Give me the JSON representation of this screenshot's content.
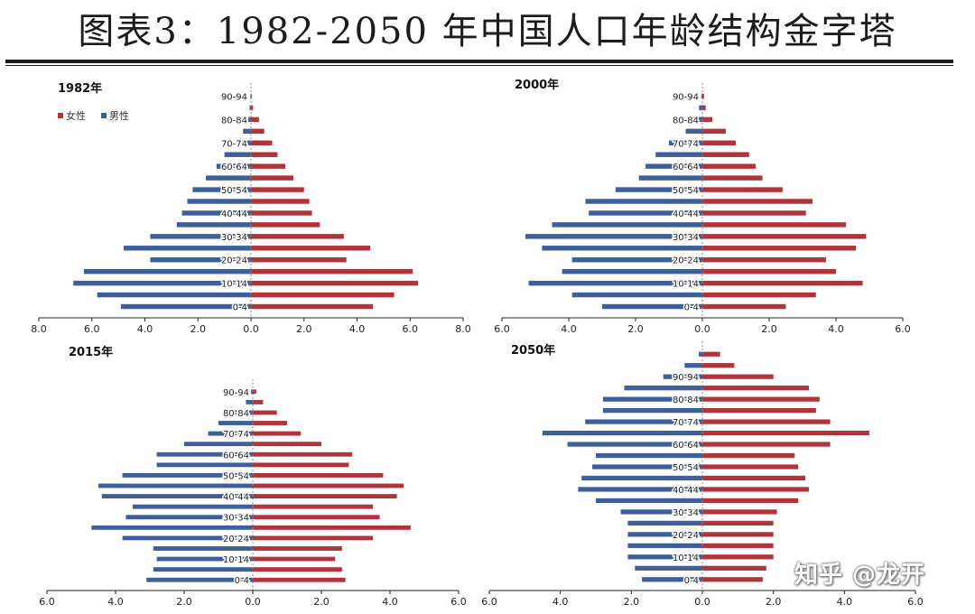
{
  "page": {
    "title": "图表3：1982-2050 年中国人口年龄结构金字塔",
    "watermark": "知乎 @龙开"
  },
  "colors": {
    "female": "#b0343a",
    "male": "#3d5f9c"
  },
  "chart_data": [
    {
      "type": "bar",
      "title": "1982年",
      "legend": {
        "items": [
          "女性",
          "男性"
        ],
        "placement": "top-left"
      },
      "age_labels": [
        "0-4",
        "10-14",
        "20-24",
        "30-34",
        "40-44",
        "50-54",
        "60-64",
        "70-74",
        "80-84",
        "90-94"
      ],
      "xlim": [
        -8,
        8
      ],
      "ticks": [
        "8.0",
        "6.0",
        "4.0",
        "2.0",
        "0.0",
        "2.0",
        "4.0",
        "6.0",
        "8.0"
      ],
      "series": [
        {
          "name": "男性",
          "values": [
            4.9,
            5.8,
            6.7,
            6.3,
            3.8,
            4.8,
            3.8,
            2.8,
            2.6,
            2.4,
            2.2,
            1.7,
            1.3,
            1.0,
            0.5,
            0.3,
            0.1,
            0.05,
            0.02
          ]
        },
        {
          "name": "女性",
          "values": [
            4.6,
            5.4,
            6.3,
            6.1,
            3.6,
            4.5,
            3.5,
            2.6,
            2.3,
            2.2,
            2.0,
            1.6,
            1.3,
            1.0,
            0.8,
            0.5,
            0.3,
            0.08,
            0.03
          ]
        }
      ]
    },
    {
      "type": "bar",
      "title": "2000年",
      "age_labels": [
        "0-4",
        "10-14",
        "20-24",
        "30-34",
        "40-44",
        "50-54",
        "60-64",
        "70-74",
        "80-84",
        "90-94"
      ],
      "xlim": [
        -6,
        6
      ],
      "ticks": [
        "6.0",
        "4.0",
        "2.0",
        "0.0",
        "2.0",
        "4.0",
        "6.0"
      ],
      "series": [
        {
          "name": "男性",
          "values": [
            3.0,
            3.9,
            5.2,
            4.2,
            3.9,
            4.8,
            5.3,
            4.5,
            3.4,
            3.5,
            2.6,
            1.9,
            1.7,
            1.4,
            1.0,
            0.5,
            0.3,
            0.1,
            0.03
          ]
        },
        {
          "name": "女性",
          "values": [
            2.5,
            3.4,
            4.8,
            4.0,
            3.7,
            4.6,
            4.9,
            4.3,
            3.1,
            3.3,
            2.4,
            1.8,
            1.6,
            1.4,
            1.0,
            0.7,
            0.3,
            0.1,
            0.05
          ]
        }
      ]
    },
    {
      "type": "bar",
      "title": "2015年",
      "age_labels": [
        "0-4",
        "10-14",
        "20-24",
        "30-34",
        "40-44",
        "50-54",
        "60-64",
        "70-74",
        "80-84",
        "90-94"
      ],
      "xlim": [
        -6,
        6
      ],
      "ticks": [
        "6.0",
        "4.0",
        "2.0",
        "0.0",
        "2.0",
        "4.0",
        "6.0"
      ],
      "series": [
        {
          "name": "男性",
          "values": [
            3.1,
            2.9,
            2.8,
            2.9,
            3.8,
            4.7,
            3.7,
            3.5,
            4.4,
            4.5,
            3.8,
            2.8,
            2.8,
            2.0,
            1.3,
            1.0,
            0.6,
            0.2,
            0.05
          ]
        },
        {
          "name": "女性",
          "values": [
            2.7,
            2.6,
            2.4,
            2.6,
            3.5,
            4.6,
            3.7,
            3.5,
            4.2,
            4.4,
            3.8,
            2.8,
            2.9,
            2.0,
            1.4,
            1.0,
            0.7,
            0.3,
            0.1
          ]
        }
      ]
    },
    {
      "type": "bar",
      "title": "2050年",
      "age_labels": [
        "0-4",
        "10-14",
        "20-24",
        "30-34",
        "40-44",
        "50-54",
        "60-64",
        "70-74",
        "80-84",
        "90-94"
      ],
      "xlim": [
        -6,
        6
      ],
      "ticks": [
        "6.0",
        "4.0",
        "2.0",
        "0.0",
        "2.0",
        "4.0",
        "6.0"
      ],
      "series": [
        {
          "name": "男性",
          "values": [
            1.7,
            1.9,
            2.1,
            2.1,
            2.1,
            2.1,
            2.3,
            3.0,
            3.5,
            3.4,
            3.1,
            3.0,
            3.8,
            4.5,
            3.3,
            2.8,
            2.8,
            2.2,
            1.1,
            0.5,
            0.1
          ]
        },
        {
          "name": "女性",
          "values": [
            1.7,
            1.8,
            2.0,
            2.0,
            2.0,
            2.0,
            2.1,
            2.7,
            3.0,
            2.9,
            2.7,
            2.6,
            3.6,
            4.7,
            3.6,
            3.2,
            3.3,
            3.0,
            2.0,
            0.9,
            0.5
          ]
        }
      ]
    }
  ]
}
